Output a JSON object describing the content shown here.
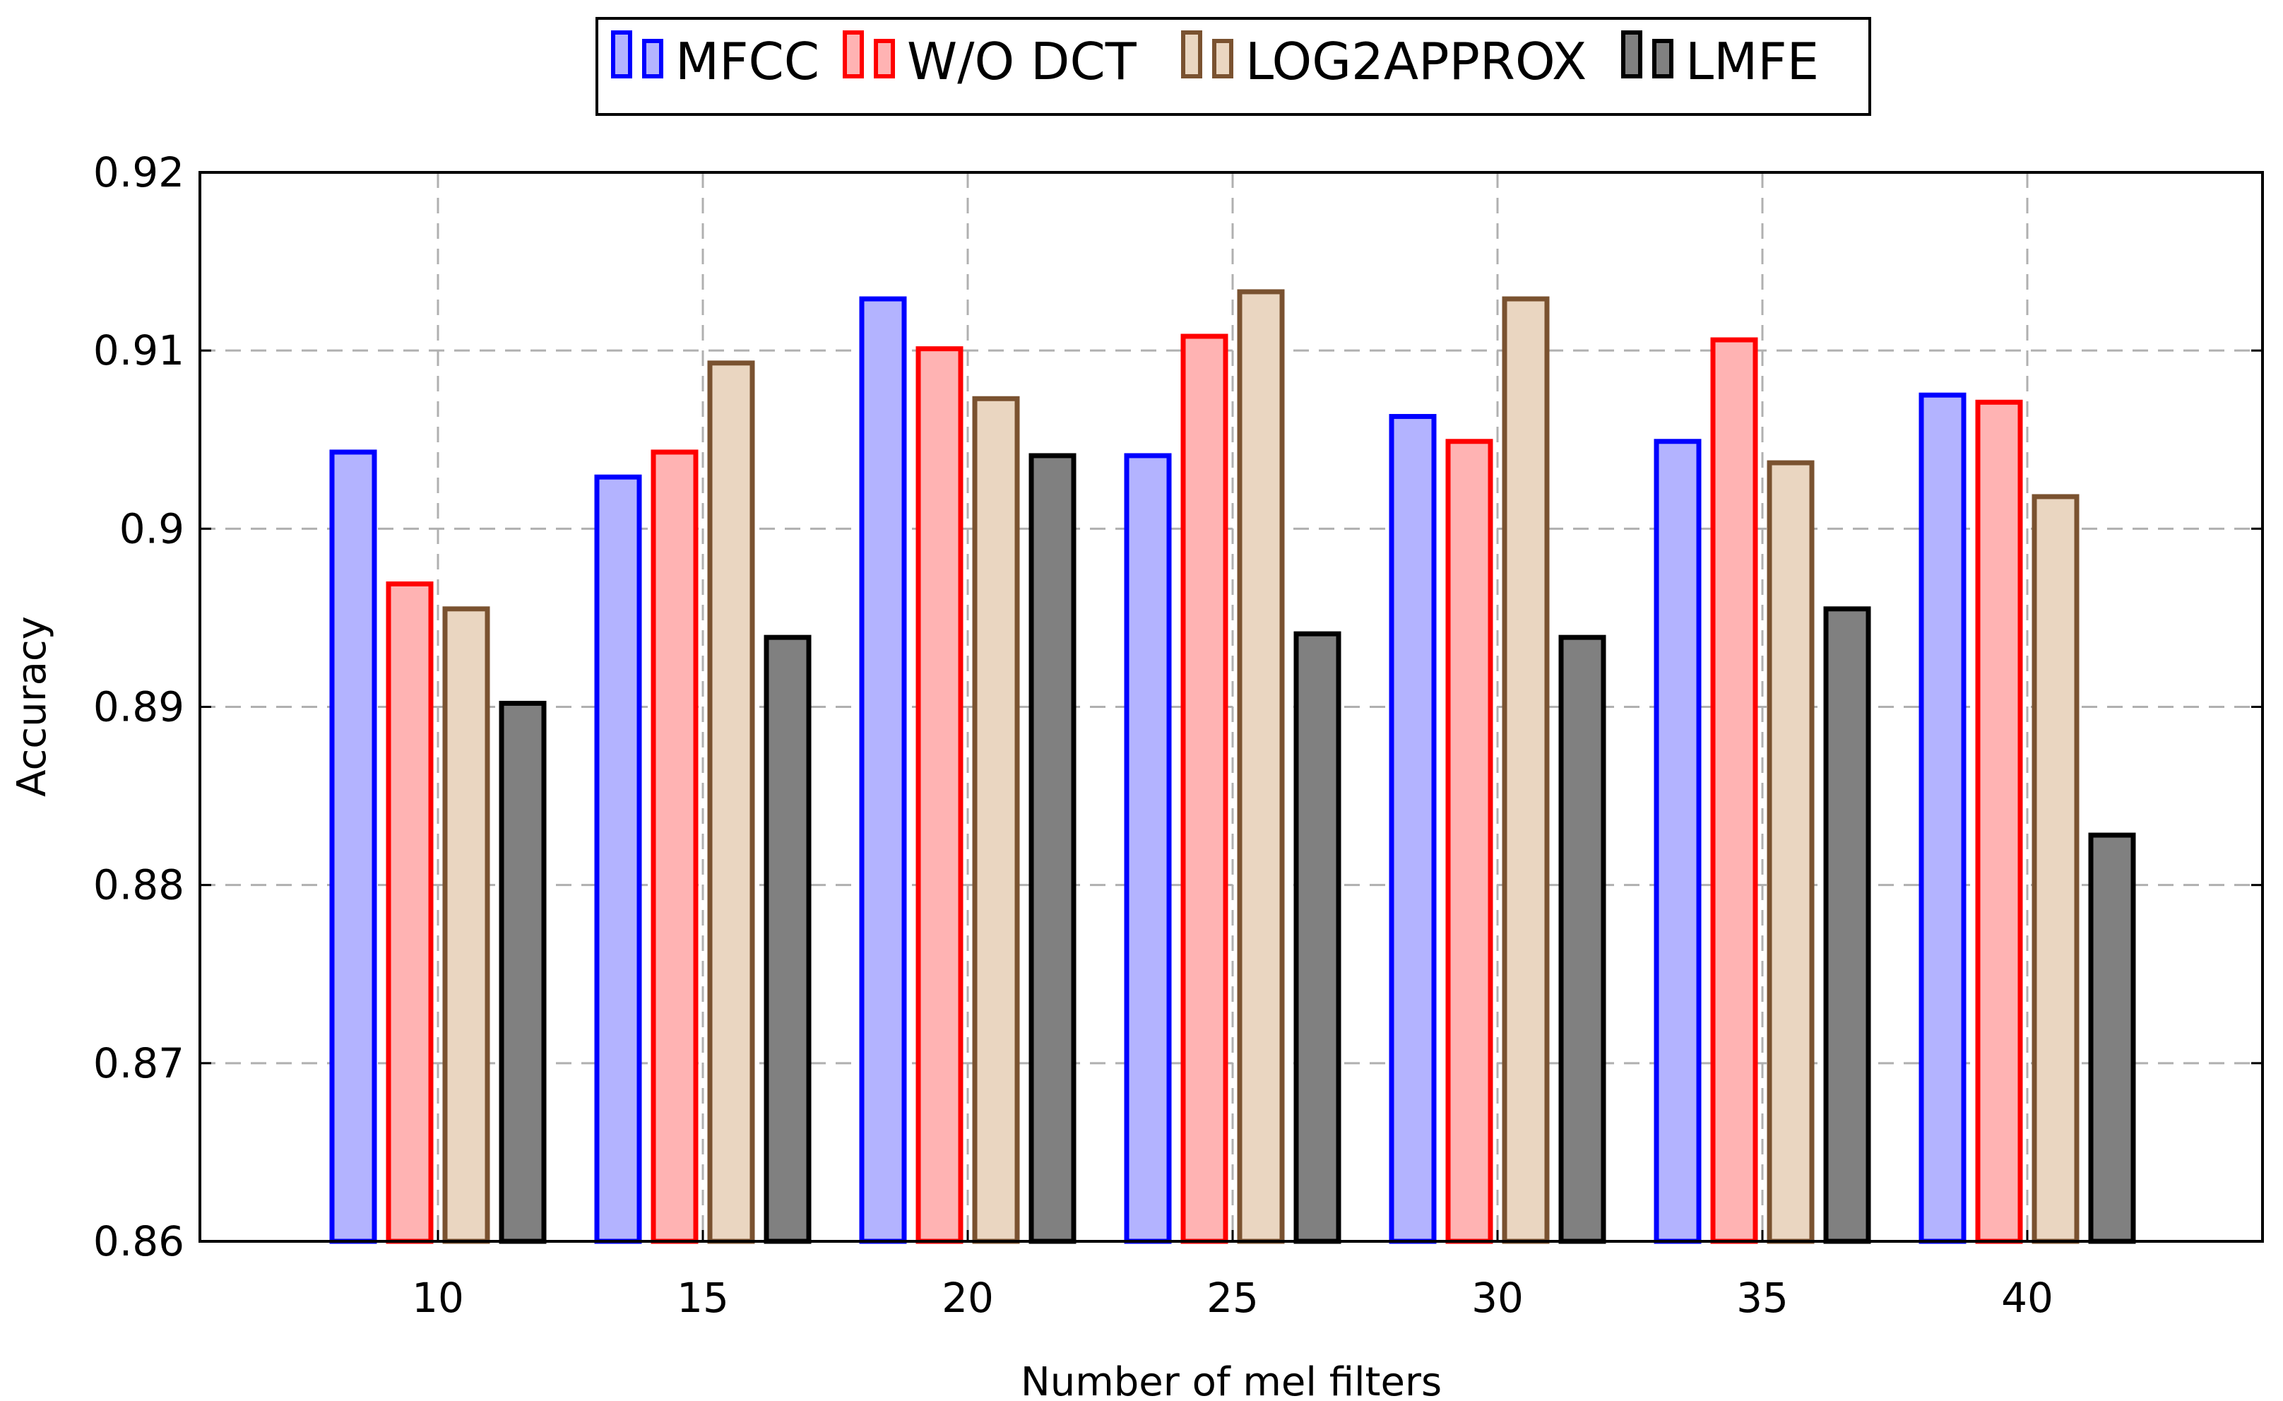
{
  "chart_data": {
    "type": "bar",
    "title": "",
    "xlabel": "Number of mel filters",
    "ylabel": "Accuracy",
    "categories": [
      "10",
      "15",
      "20",
      "25",
      "30",
      "35",
      "40"
    ],
    "ylim": [
      0.86,
      0.92
    ],
    "yticks": [
      "0.86",
      "0.87",
      "0.88",
      "0.89",
      "0.9",
      "0.91",
      "0.92"
    ],
    "grid": true,
    "legend_position": "top-center",
    "series": [
      {
        "name": "MFCC",
        "fill": "#b3b3ff",
        "stroke": "#0000ff",
        "values": [
          0.9043,
          0.9029,
          0.9129,
          0.9041,
          0.9063,
          0.9049,
          0.9075
        ]
      },
      {
        "name": "W/O DCT",
        "fill": "#ffb3b3",
        "stroke": "#ff0000",
        "values": [
          0.8969,
          0.9043,
          0.9101,
          0.9108,
          0.9049,
          0.9106,
          0.9071
        ]
      },
      {
        "name": "LOG2APPROX",
        "fill": "#ead6c1",
        "stroke": "#7a5230",
        "values": [
          0.8955,
          0.9093,
          0.9073,
          0.9133,
          0.9129,
          0.9037,
          0.9018
        ]
      },
      {
        "name": "LMFE",
        "fill": "#808080",
        "stroke": "#000000",
        "values": [
          0.8902,
          0.8939,
          0.9041,
          0.8941,
          0.8939,
          0.8955,
          0.8828
        ]
      }
    ]
  }
}
